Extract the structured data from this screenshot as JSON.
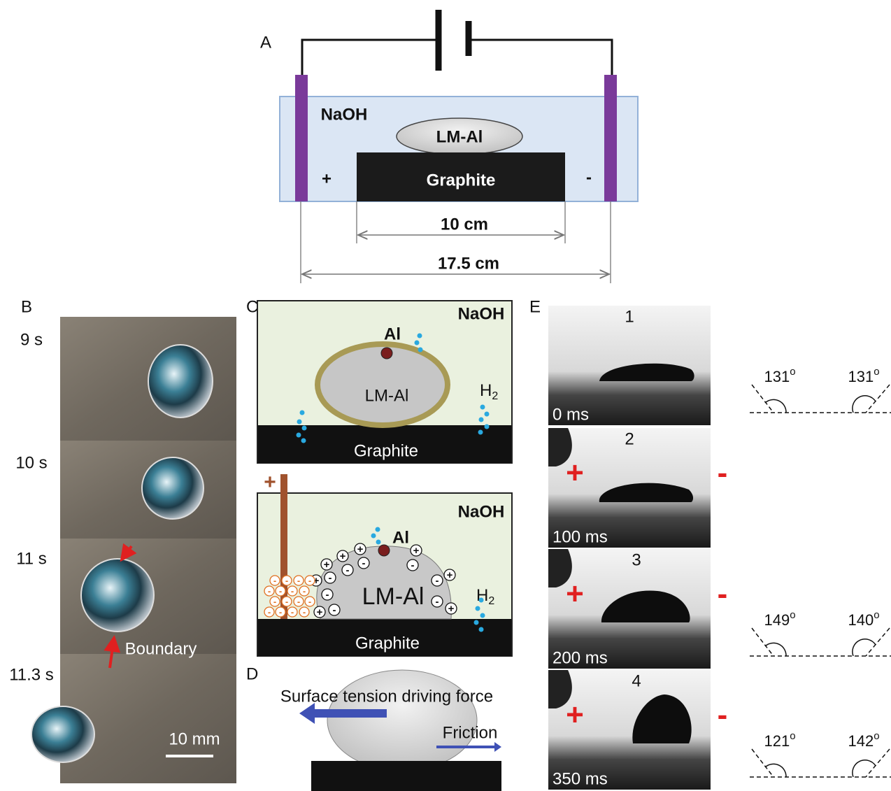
{
  "panel_a": {
    "label": "A",
    "solution": "NaOH",
    "droplet": "LM-Al",
    "substrate": "Graphite",
    "anode": "+",
    "cathode": "-",
    "inner_dimension": "10 cm",
    "outer_dimension": "17.5 cm"
  },
  "panel_b": {
    "label": "B",
    "frames": [
      {
        "time": "9 s"
      },
      {
        "time": "10 s"
      },
      {
        "time": "11 s"
      },
      {
        "time": "11.3 s"
      }
    ],
    "annotation": "Boundary",
    "scale_bar": "10 mm"
  },
  "panel_c": {
    "label": "C",
    "top": {
      "solution": "NaOH",
      "particle": "Al",
      "droplet": "LM-Al",
      "gas": "H",
      "gas_subscript": "2",
      "substrate": "Graphite"
    },
    "bottom": {
      "electrode": "+",
      "solution": "NaOH",
      "particle": "Al",
      "droplet": "LM-Al",
      "gas": "H",
      "gas_subscript": "2",
      "substrate": "Graphite",
      "positive_charge": "+",
      "negative_charge": "-"
    }
  },
  "panel_d": {
    "label": "D",
    "driving_force": "Surface tension driving force",
    "friction": "Friction"
  },
  "panel_e": {
    "label": "E",
    "anode": "+",
    "cathode": "-",
    "degree_symbol": "o",
    "frames": [
      {
        "index": "1",
        "time": "0 ms",
        "left_angle": "131",
        "right_angle": "131"
      },
      {
        "index": "2",
        "time": "100 ms"
      },
      {
        "index": "3",
        "time": "200 ms",
        "left_angle": "149",
        "right_angle": "140"
      },
      {
        "index": "4",
        "time": "350 ms",
        "left_angle": "121",
        "right_angle": "142"
      }
    ]
  }
}
